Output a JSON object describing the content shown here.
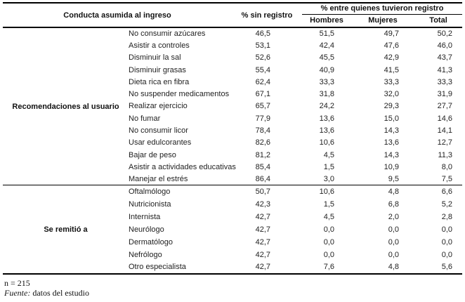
{
  "table": {
    "headers": {
      "behavior": "Conducta asumida al ingreso",
      "no_record": "% sin registro",
      "record_span": "% entre quienes tuvieron registro",
      "sub": [
        "Hombres",
        "Mujeres",
        "Total"
      ]
    },
    "sections": [
      {
        "group": "Recomendaciones al usuario",
        "rows": [
          {
            "label": "No consumir azúcares",
            "sin_registro": "46,5",
            "hombres": "51,5",
            "mujeres": "49,7",
            "total": "50,2"
          },
          {
            "label": "Asistir a controles",
            "sin_registro": "53,1",
            "hombres": "42,4",
            "mujeres": "47,6",
            "total": "46,0"
          },
          {
            "label": "Disminuir la sal",
            "sin_registro": "52,6",
            "hombres": "45,5",
            "mujeres": "42,9",
            "total": "43,7"
          },
          {
            "label": "Disminuir grasas",
            "sin_registro": "55,4",
            "hombres": "40,9",
            "mujeres": "41,5",
            "total": "41,3"
          },
          {
            "label": "Dieta rica en fibra",
            "sin_registro": "62,4",
            "hombres": "33,3",
            "mujeres": "33,3",
            "total": "33,3"
          },
          {
            "label": "No suspender medicamentos",
            "sin_registro": "67,1",
            "hombres": "31,8",
            "mujeres": "32,0",
            "total": "31,9"
          },
          {
            "label": "Realizar ejercicio",
            "sin_registro": "65,7",
            "hombres": "24,2",
            "mujeres": "29,3",
            "total": "27,7"
          },
          {
            "label": "No fumar",
            "sin_registro": "77,9",
            "hombres": "13,6",
            "mujeres": "15,0",
            "total": "14,6"
          },
          {
            "label": "No consumir licor",
            "sin_registro": "78,4",
            "hombres": "13,6",
            "mujeres": "14,3",
            "total": "14,1"
          },
          {
            "label": "Usar edulcorantes",
            "sin_registro": "82,6",
            "hombres": "10,6",
            "mujeres": "13,6",
            "total": "12,7"
          },
          {
            "label": "Bajar de peso",
            "sin_registro": "81,2",
            "hombres": "4,5",
            "mujeres": "14,3",
            "total": "11,3"
          },
          {
            "label": "Asistir a actividades educativas",
            "sin_registro": "85,4",
            "hombres": "1,5",
            "mujeres": "10,9",
            "total": "8,0"
          },
          {
            "label": "Manejar el estrés",
            "sin_registro": "86,4",
            "hombres": "3,0",
            "mujeres": "9,5",
            "total": "7,5"
          }
        ]
      },
      {
        "group": "Se remitió a",
        "rows": [
          {
            "label": "Oftalmólogo",
            "sin_registro": "50,7",
            "hombres": "10,6",
            "mujeres": "4,8",
            "total": "6,6"
          },
          {
            "label": "Nutricionista",
            "sin_registro": "42,3",
            "hombres": "1,5",
            "mujeres": "6,8",
            "total": "5,2"
          },
          {
            "label": "Internista",
            "sin_registro": "42,7",
            "hombres": "4,5",
            "mujeres": "2,0",
            "total": "2,8"
          },
          {
            "label": "Neurólogo",
            "sin_registro": "42,7",
            "hombres": "0,0",
            "mujeres": "0,0",
            "total": "0,0"
          },
          {
            "label": "Dermatólogo",
            "sin_registro": "42,7",
            "hombres": "0,0",
            "mujeres": "0,0",
            "total": "0,0"
          },
          {
            "label": "Nefrólogo",
            "sin_registro": "42,7",
            "hombres": "0,0",
            "mujeres": "0,0",
            "total": "0,0"
          },
          {
            "label": "Otro especialista",
            "sin_registro": "42,7",
            "hombres": "7,6",
            "mujeres": "4,8",
            "total": "5,6"
          }
        ]
      }
    ]
  },
  "footer": {
    "n": "n = 215",
    "source_label": "Fuente:",
    "source_text": " datos del estudio"
  }
}
